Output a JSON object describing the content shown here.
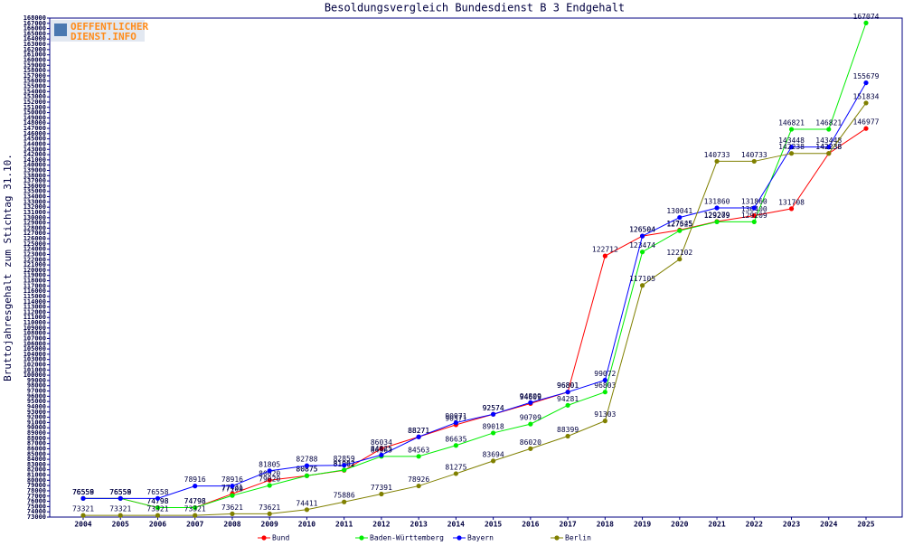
{
  "chart_data": {
    "type": "line",
    "title": "Besoldungsvergleich Bundesdienst B 3 Endgehalt",
    "y_label": "Bruttojahresgehalt zum Stichtag 31.10.",
    "logo": [
      "OEFFENTLICHER",
      "DIENST.INFO"
    ],
    "categories": [
      "2004",
      "2005",
      "2006",
      "2007",
      "2008",
      "2009",
      "2010",
      "2011",
      "2012",
      "2013",
      "2014",
      "2015",
      "2016",
      "2017",
      "2018",
      "2019",
      "2020",
      "2021",
      "2022",
      "2023",
      "2024",
      "2025"
    ],
    "series": [
      {
        "name": "Bund",
        "color": "#ff0000",
        "values": [
          76559,
          76559,
          74798,
          74798,
          77431,
          80020,
          80875,
          81902,
          86034,
          88271,
          90571,
          92574,
          94609,
          96801,
          122712,
          126504,
          127645,
          129279,
          130400,
          131708,
          142238,
          146977
        ]
      },
      {
        "name": "Baden-Württemberg",
        "color": "#00ee00",
        "values": [
          76558,
          76558,
          74798,
          74798,
          77100,
          79020,
          80875,
          81962,
          84563,
          84563,
          86635,
          89018,
          90709,
          94281,
          96803,
          123474,
          127525,
          129209,
          129209,
          146821,
          146821,
          167074
        ]
      },
      {
        "name": "Bayern",
        "color": "#0000ff",
        "values": [
          76559,
          76559,
          76558,
          78916,
          78916,
          81805,
          82788,
          82859,
          84825,
          88271,
          90971,
          92574,
          94809,
          96801,
          99072,
          126504,
          130041,
          131860,
          131860,
          143448,
          143448,
          155679
        ]
      },
      {
        "name": "Berlin",
        "color": "#808000",
        "values": [
          73321,
          73321,
          73321,
          73321,
          73621,
          73621,
          74411,
          75886,
          77391,
          78926,
          81275,
          83694,
          86020,
          88399,
          91303,
          117105,
          122102,
          140733,
          140733,
          142238,
          142238,
          151834
        ]
      }
    ],
    "ylim": [
      73000,
      168000
    ],
    "yticks": [
      73000,
      74000,
      75000,
      76000,
      77000,
      78000,
      79000,
      80000,
      81000,
      82000,
      83000,
      84000,
      85000,
      86000,
      87000,
      88000,
      89000,
      90000,
      91000,
      92000,
      93000,
      94000,
      95000,
      96000,
      97000,
      98000,
      99000,
      100000,
      101000,
      102000,
      103000,
      104000,
      105000,
      106000,
      107000,
      108000,
      109000,
      110000,
      111000,
      112000,
      113000,
      114000,
      115000,
      116000,
      117000,
      118000,
      119000,
      120000,
      121000,
      122000,
      123000,
      124000,
      125000,
      126000,
      127000,
      128000,
      129000,
      130000,
      131000,
      132000,
      133000,
      134000,
      135000,
      136000,
      137000,
      138000,
      139000,
      140000,
      141000,
      142000,
      143000,
      144000,
      145000,
      146000,
      147000,
      148000,
      149000,
      150000,
      151000,
      152000,
      153000,
      154000,
      155000,
      156000,
      157000,
      158000,
      159000,
      160000,
      161000,
      162000,
      163000,
      164000,
      165000,
      166000,
      167000,
      168000
    ],
    "legend": "bottom"
  }
}
